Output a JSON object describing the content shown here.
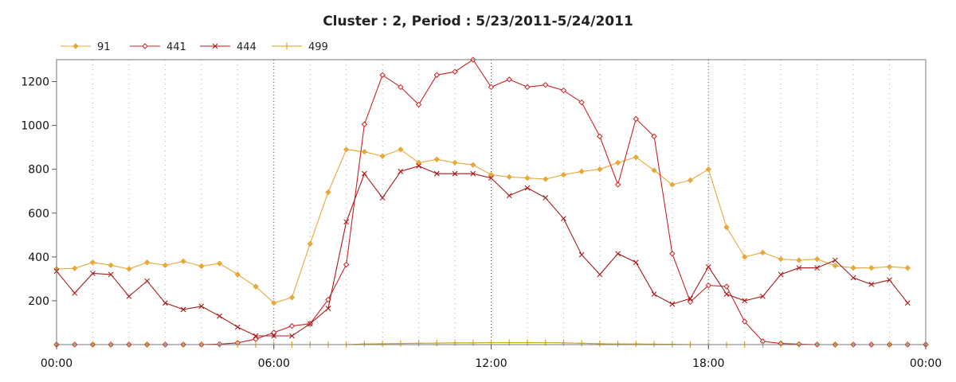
{
  "chart_data": {
    "type": "line",
    "title": "Cluster : 2, Period : 5/23/2011-5/24/2011",
    "xlabel": "",
    "ylabel": "",
    "xlim": [
      0,
      24
    ],
    "ylim": [
      0,
      1300
    ],
    "x_tick_values": [
      0,
      6,
      12,
      18,
      24
    ],
    "x_tick_labels": [
      "00:00",
      "06:00",
      "12:00",
      "18:00",
      "00:00"
    ],
    "y_ticks": [
      200,
      400,
      600,
      800,
      1000,
      1200
    ],
    "grid": {
      "vertical_minor_hours": 1,
      "vertical_major_hours": 6
    },
    "legend_position": "top-left",
    "x_step_hours": 0.5,
    "series": [
      {
        "name": "91",
        "color": "#e8a83a",
        "marker": "diamond-filled",
        "values": [
          345,
          348,
          375,
          362,
          345,
          375,
          362,
          380,
          358,
          370,
          320,
          265,
          190,
          215,
          460,
          695,
          890,
          880,
          860,
          890,
          830,
          845,
          830,
          820,
          775,
          765,
          760,
          755,
          775,
          790,
          800,
          830,
          855,
          795,
          730,
          750,
          800,
          535,
          400,
          420,
          390,
          385,
          390,
          360,
          350,
          350,
          355,
          350
        ]
      },
      {
        "name": "441",
        "color": "#cc2222",
        "marker": "diamond-open",
        "values": [
          0,
          0,
          0,
          0,
          0,
          0,
          0,
          0,
          0,
          2,
          8,
          25,
          55,
          85,
          95,
          205,
          365,
          1005,
          1230,
          1175,
          1095,
          1230,
          1245,
          1300,
          1175,
          1210,
          1175,
          1185,
          1160,
          1105,
          950,
          730,
          1030,
          950,
          415,
          195,
          270,
          265,
          105,
          15,
          5,
          2,
          0,
          0,
          0,
          0,
          0,
          0,
          0
        ]
      },
      {
        "name": "444",
        "color": "#aa1a1a",
        "marker": "x",
        "values": [
          335,
          235,
          325,
          320,
          220,
          290,
          190,
          160,
          175,
          130,
          80,
          40,
          40,
          40,
          95,
          165,
          560,
          780,
          670,
          790,
          815,
          780,
          780,
          780,
          760,
          680,
          715,
          670,
          575,
          410,
          320,
          415,
          375,
          230,
          185,
          210,
          355,
          230,
          200,
          220,
          320,
          350,
          350,
          385,
          305,
          275,
          295,
          190
        ]
      },
      {
        "name": "499",
        "color": "#d4a017",
        "marker": "plus",
        "values": [
          0,
          0,
          0,
          0,
          0,
          0,
          0,
          0,
          0,
          0,
          0,
          0,
          0,
          0,
          0,
          0,
          0,
          3,
          4,
          5,
          6,
          7,
          8,
          8,
          9,
          9,
          9,
          9,
          8,
          6,
          4,
          3,
          3,
          2,
          1,
          0,
          0,
          0,
          0,
          0,
          0,
          0,
          0,
          0,
          0,
          0,
          0,
          0,
          0
        ]
      }
    ]
  }
}
